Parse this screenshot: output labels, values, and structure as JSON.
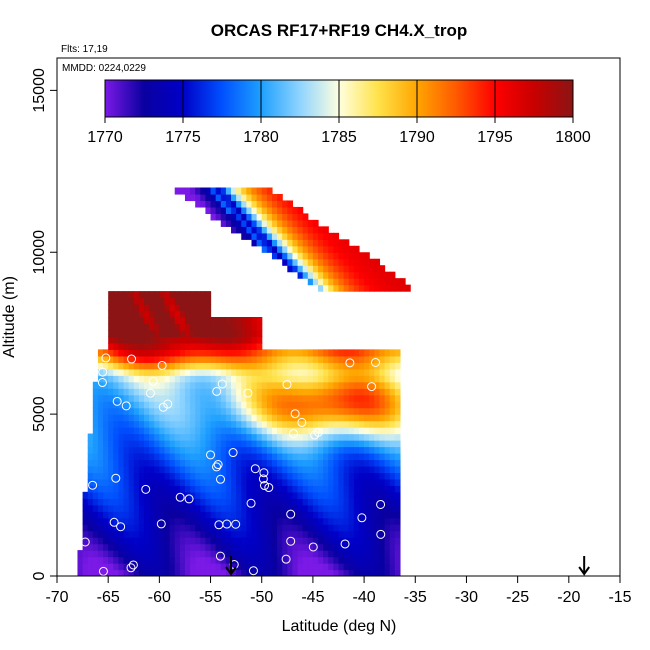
{
  "chart_data": {
    "type": "heatmap",
    "title": "ORCAS RF17+RF19 CH4.X_trop",
    "flights_label": "Flts: 17,19",
    "dates_label": "MMDD: 0224,0229",
    "xlabel": "Latitude (deg N)",
    "ylabel": "Altitude (m)",
    "xlim": [
      -70,
      -15
    ],
    "ylim": [
      0,
      16000
    ],
    "x_ticks": [
      "-70",
      "-65",
      "-60",
      "-55",
      "-50",
      "-45",
      "-40",
      "-35",
      "-30",
      "-25",
      "-20",
      "-15"
    ],
    "y_ticks": [
      "0",
      "5000",
      "10000",
      "15000"
    ],
    "colorbar": {
      "min": 1770,
      "max": 1800,
      "ticks": [
        "1770",
        "1775",
        "1780",
        "1785",
        "1790",
        "1795",
        "1800"
      ],
      "stops": [
        "#7b19e6",
        "#0a00a0",
        "#0000c8",
        "#0050ff",
        "#1ea0ff",
        "#8fd4ff",
        "#ffffe0",
        "#ffe24a",
        "#ffa500",
        "#ff5a00",
        "#ff0000",
        "#c80000",
        "#8c1414"
      ]
    },
    "colored_region": {
      "lower_block": {
        "lat_left_bottom": -68,
        "lat_left_top": -66,
        "lat_right": -36.5,
        "alt_bottom": 0,
        "alt_top": 6900
      },
      "mid_band": {
        "lat_left": -65,
        "lat_right": -55,
        "alt_bottom": 7300,
        "alt_top": 8700
      },
      "upper_stripe": {
        "lat_start": -57,
        "lat_end": -35,
        "alt_start": 8800,
        "alt_end": 12000
      }
    },
    "features": [
      {
        "name": "low-altitude blue",
        "lat_range": [
          -68,
          -36
        ],
        "alt_range": [
          0,
          3500
        ],
        "value_range": [
          1771,
          1778
        ]
      },
      {
        "name": "mid-altitude blue",
        "lat_range": [
          -66,
          -36
        ],
        "alt_range": [
          3500,
          6000
        ],
        "value_range": [
          1776,
          1783
        ]
      },
      {
        "name": "orange core",
        "lat_range": [
          -50,
          -36
        ],
        "alt_range": [
          4800,
          5800
        ],
        "value_range": [
          1788,
          1791
        ]
      },
      {
        "name": "upper orange/red",
        "lat_range": [
          -65,
          -36
        ],
        "alt_range": [
          6500,
          8700
        ],
        "value_range": [
          1789,
          1798
        ]
      },
      {
        "name": "upper red stripe",
        "lat_range": [
          -57,
          -35
        ],
        "alt_range": [
          8800,
          12000
        ],
        "value_range": [
          1780,
          1797
        ]
      }
    ],
    "sample_points_count": 60,
    "markers": [
      {
        "type": "arrow",
        "lat": -53
      },
      {
        "type": "arrow",
        "lat": -18.5
      }
    ]
  }
}
